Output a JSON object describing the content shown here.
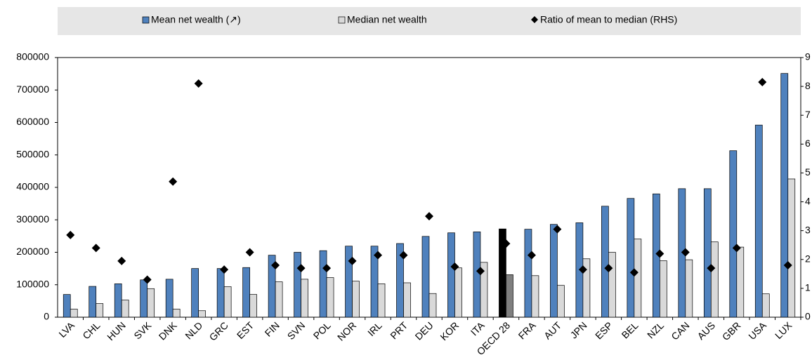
{
  "chart_data": {
    "type": "bar",
    "categories": [
      "LVA",
      "CHL",
      "HUN",
      "SVK",
      "DNK",
      "NLD",
      "GRC",
      "EST",
      "FIN",
      "SVN",
      "POL",
      "NOR",
      "IRL",
      "PRT",
      "DEU",
      "KOR",
      "ITA",
      "OECD 28",
      "FRA",
      "AUT",
      "JPN",
      "ESP",
      "BEL",
      "NZL",
      "CAN",
      "AUS",
      "GBR",
      "USA",
      "LUX"
    ],
    "series": [
      {
        "name": "Mean net wealth (↗)",
        "type": "bar",
        "color": "#4f81bd",
        "highlight_color": "#000000",
        "values": [
          70000,
          95000,
          103000,
          115000,
          117000,
          150000,
          150000,
          153000,
          191000,
          200000,
          205000,
          219000,
          219000,
          227000,
          249000,
          260000,
          263000,
          272000,
          271000,
          286000,
          291000,
          342000,
          366000,
          380000,
          396000,
          396000,
          513000,
          592000,
          751000
        ]
      },
      {
        "name": "Median net wealth",
        "type": "bar",
        "color": "#d9d9d9",
        "highlight_color": "#7f7f7f",
        "values": [
          25000,
          42000,
          53000,
          88000,
          25000,
          20000,
          94000,
          70000,
          109000,
          117000,
          122000,
          111000,
          103000,
          106000,
          73000,
          152000,
          169000,
          131000,
          128000,
          98000,
          180000,
          200000,
          241000,
          174000,
          177000,
          232000,
          216000,
          72000,
          426000
        ]
      },
      {
        "name": "Ratio of mean to median (RHS)",
        "type": "scatter",
        "axis": "y2",
        "color": "#000000",
        "values": [
          2.85,
          2.4,
          1.95,
          1.3,
          4.7,
          8.1,
          1.65,
          2.25,
          1.8,
          1.7,
          1.7,
          1.95,
          2.15,
          2.15,
          3.5,
          1.75,
          1.6,
          2.55,
          2.15,
          3.05,
          1.65,
          1.7,
          1.55,
          2.2,
          2.25,
          1.7,
          2.4,
          8.15,
          1.8
        ]
      }
    ],
    "highlight_category": "OECD 28",
    "ylim": [
      0,
      800000
    ],
    "yticks": [
      0,
      100000,
      200000,
      300000,
      400000,
      500000,
      600000,
      700000,
      800000
    ],
    "y2lim": [
      0,
      9
    ],
    "y2ticks": [
      0,
      1,
      2,
      3,
      4,
      5,
      6,
      7,
      8,
      9
    ],
    "grid": false
  }
}
